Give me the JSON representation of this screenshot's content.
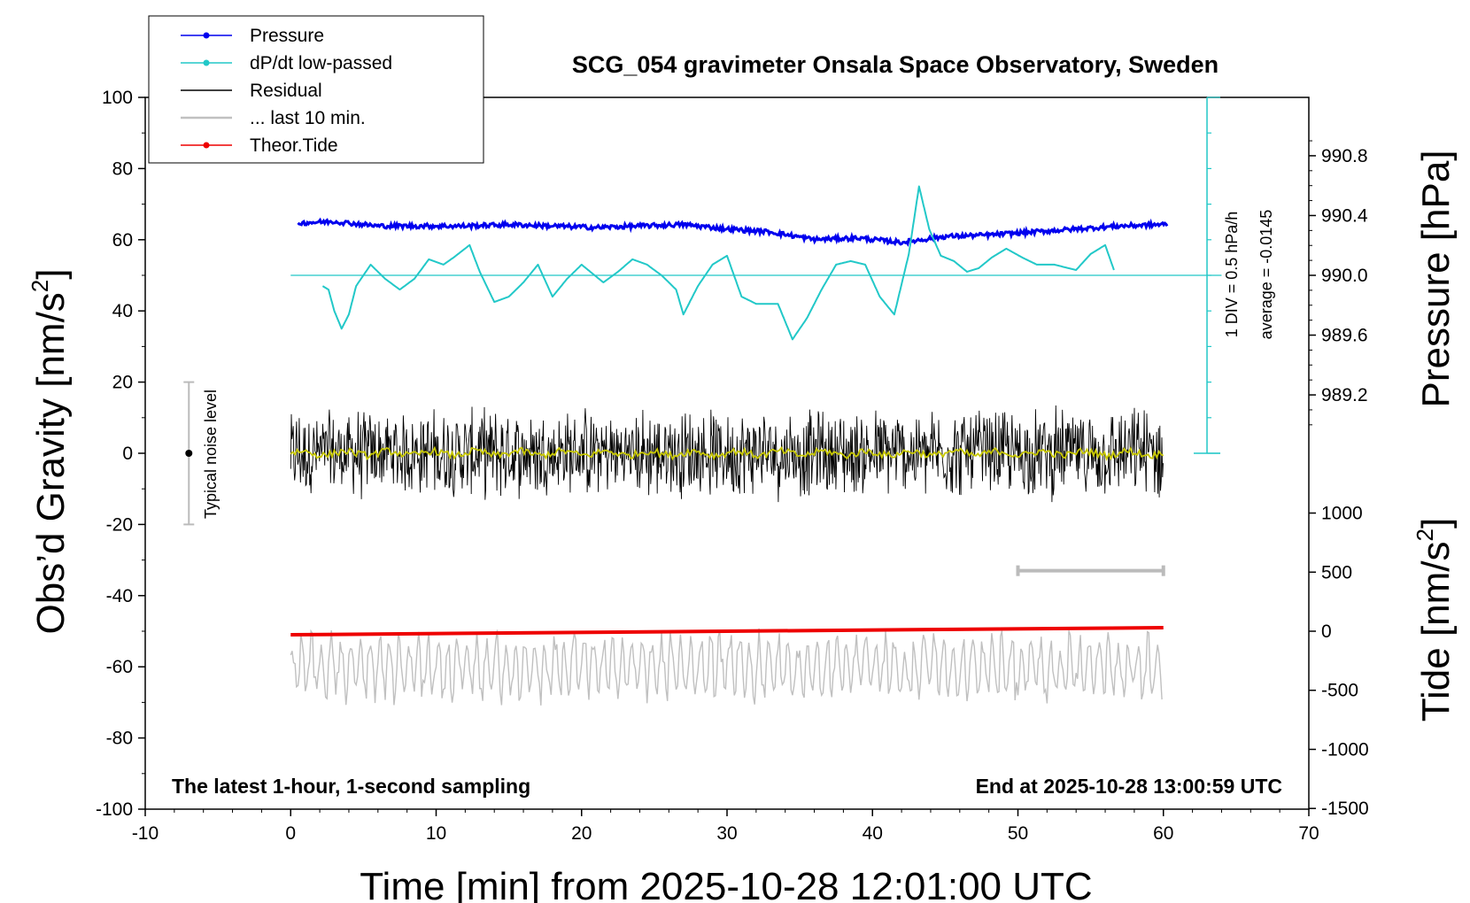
{
  "chart_data": {
    "type": "line",
    "title": "SCG_054 gravimeter Onsala Space Observatory, Sweden",
    "subtitle_left": "The latest 1-hour, 1-second sampling",
    "subtitle_right": "End at 2025-10-28 13:00:59 UTC",
    "xlabel": "Time [min] from 2025-10-28 12:01:00 UTC",
    "ylabel_left_main": "Obs’d Gravity [nm/s",
    "ylabel_left_sup": "2",
    "ylabel_left_end": "]",
    "ylabel_right_top": "Pressure [hPa]",
    "ylabel_right_bottom_main": "Tide [nm/s",
    "ylabel_right_bottom_sup": "2",
    "ylabel_right_bottom_end": "]",
    "xlim": [
      -10,
      70
    ],
    "ylim": [
      -100,
      100
    ],
    "x_ticks": [
      -10,
      0,
      10,
      20,
      30,
      40,
      50,
      60,
      70
    ],
    "y_ticks": [
      -100,
      -80,
      -60,
      -40,
      -20,
      0,
      20,
      40,
      60,
      80,
      100
    ],
    "pressure_ticks": [
      "990.8",
      "990.4",
      "990.0",
      "989.6",
      "989.2"
    ],
    "pressure_tick_values": [
      990.8,
      990.4,
      990.0,
      989.6,
      989.2
    ],
    "tide_ticks": [
      "1000",
      "500",
      "0",
      "-500",
      "-1000",
      "-1500"
    ],
    "tide_tick_values": [
      1000,
      500,
      0,
      -500,
      -1000,
      -1500
    ],
    "legend": [
      {
        "label": "Pressure",
        "color": "#0000ee",
        "marker": true
      },
      {
        "label": "dP/dt low-passed",
        "color": "#22c8c8",
        "marker": true
      },
      {
        "label": "Residual",
        "color": "#000000",
        "marker": false
      },
      {
        "label": "... last 10 min.",
        "color": "#c0c0c0",
        "marker": false
      },
      {
        "label": "Theor.Tide",
        "color": "#ee0000",
        "marker": true
      }
    ],
    "noise_label": "Typical noise level",
    "dpdt_scale_label": "1 DIV = 0.5 hPa/h",
    "dpdt_average_label": "average = -0.0145",
    "colors": {
      "pressure": "#0000ee",
      "dpdt": "#22c8c8",
      "residual": "#000000",
      "residual_smooth": "#c8c800",
      "last10": "#c0c0c0",
      "tide": "#ee0000"
    },
    "series": [
      {
        "name": "Pressure",
        "x": [
          0.5,
          3,
          6,
          9,
          12,
          15,
          18,
          21,
          24,
          27,
          30,
          33,
          36,
          39,
          42,
          45,
          48,
          51,
          54,
          57,
          60
        ],
        "values": [
          990.35,
          990.36,
          990.33,
          990.33,
          990.33,
          990.34,
          990.33,
          990.32,
          990.33,
          990.34,
          990.31,
          990.29,
          990.24,
          990.25,
          990.22,
          990.26,
          990.27,
          990.29,
          990.31,
          990.33,
          990.34
        ]
      },
      {
        "name": "dP/dt low-passed",
        "x": [
          2.2,
          2.6,
          3,
          3.5,
          4,
          4.5,
          5.5,
          6.5,
          7.5,
          8.5,
          9.5,
          10.5,
          11.2,
          12.3,
          13,
          14,
          15,
          16,
          17,
          18,
          19,
          20,
          21.5,
          22.5,
          23.5,
          24.5,
          25.5,
          26.5,
          27,
          28,
          29,
          30,
          31,
          32,
          33.5,
          34.5,
          35.5,
          36.5,
          37.5,
          38.5,
          39.5,
          40.5,
          41.5,
          42.5,
          43.2,
          43.9,
          44.7,
          45.6,
          46.5,
          47.3,
          48.2,
          49.2,
          50.3,
          51.3,
          52.5,
          54,
          55,
          56,
          56.6
        ],
        "values": [
          47,
          46,
          40,
          35,
          39,
          47,
          53,
          49,
          46,
          49,
          54.5,
          53,
          55,
          58.5,
          51,
          42.5,
          44,
          48,
          53,
          44,
          49,
          53,
          48,
          51,
          54.5,
          53,
          50,
          46,
          39,
          47,
          53,
          55.5,
          44,
          42,
          42,
          32,
          38,
          46,
          53,
          54,
          53,
          44,
          39,
          56,
          75,
          63,
          55.5,
          54,
          51,
          52,
          55,
          57.5,
          55,
          53,
          53,
          51.5,
          56,
          58.5,
          51.5
        ]
      },
      {
        "name": "Residual",
        "x": [
          0,
          60
        ],
        "values": [
          0,
          0
        ]
      },
      {
        "name": "... last 10 min.",
        "x": [
          0,
          60
        ],
        "values": [
          -60,
          -60
        ]
      },
      {
        "name": "Theor.Tide",
        "x": [
          0,
          60
        ],
        "values": [
          -51,
          -49
        ]
      }
    ],
    "last10_bracket": [
      50,
      60
    ]
  }
}
